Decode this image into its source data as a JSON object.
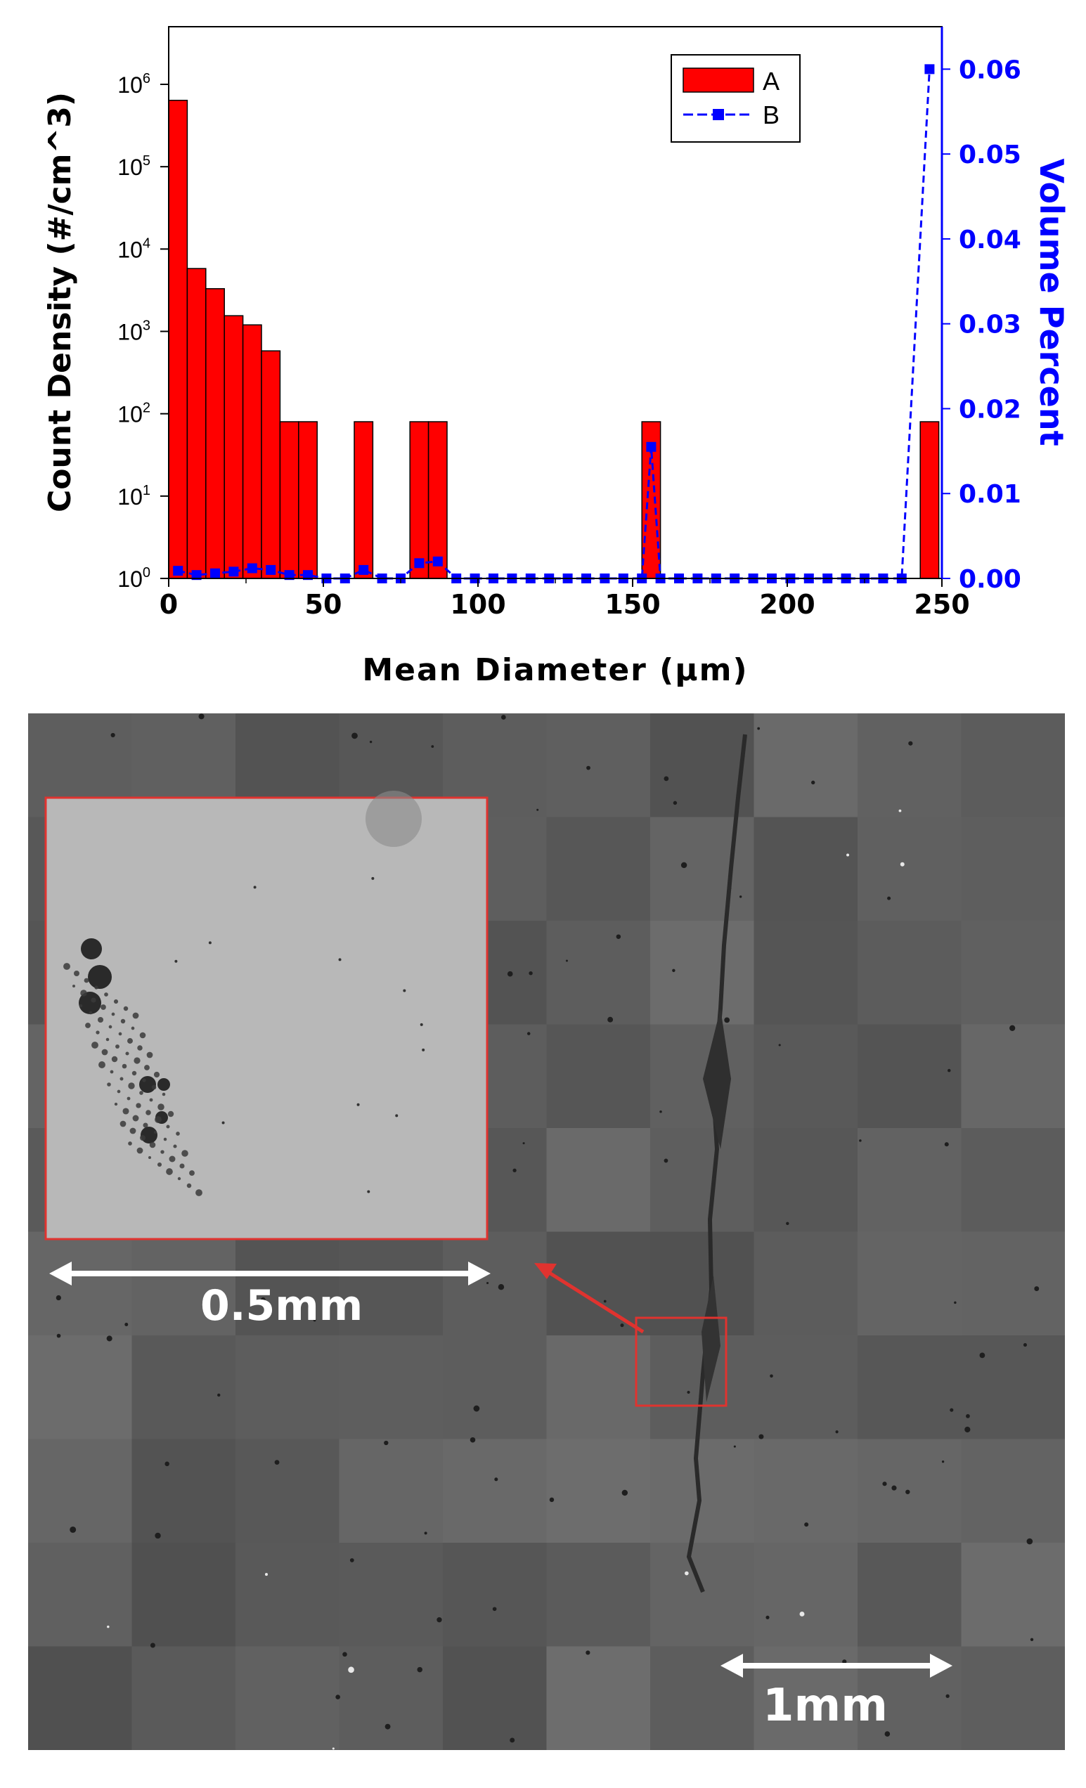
{
  "chart_data": {
    "type": "bar",
    "xlabel": "Mean Diameter (µm)",
    "ylabel": "Count Density (#/cm^3)",
    "y2label": "Volume Percent",
    "xlim": [
      0,
      250
    ],
    "ylim": [
      1,
      1000000
    ],
    "yscale": "log",
    "y2lim": [
      0,
      0.065
    ],
    "x_ticks": [
      0,
      50,
      100,
      150,
      200,
      250
    ],
    "y_ticks": [
      {
        "base": "10",
        "exp": "0",
        "value": 1
      },
      {
        "base": "10",
        "exp": "1",
        "value": 10
      },
      {
        "base": "10",
        "exp": "2",
        "value": 100
      },
      {
        "base": "10",
        "exp": "3",
        "value": 1000
      },
      {
        "base": "10",
        "exp": "4",
        "value": 10000
      },
      {
        "base": "10",
        "exp": "5",
        "value": 100000
      },
      {
        "base": "10",
        "exp": "6",
        "value": 1000000
      }
    ],
    "y2_ticks": [
      "0.00",
      "0.01",
      "0.02",
      "0.03",
      "0.04",
      "0.05",
      "0.06"
    ],
    "legend_position": "top-right",
    "grid": false,
    "colors": {
      "A": "#ff0000",
      "B": "#0000ff"
    },
    "series": [
      {
        "name": "A",
        "type": "bar",
        "axis": "left",
        "x": [
          3,
          9,
          15,
          21,
          27,
          33,
          39,
          45,
          63,
          81,
          87,
          156,
          246
        ],
        "values": [
          640000,
          5800,
          3300,
          1550,
          1200,
          580,
          80,
          80,
          80,
          80,
          80,
          80,
          80
        ]
      },
      {
        "name": "B",
        "type": "line",
        "axis": "right",
        "x": [
          3,
          9,
          15,
          21,
          27,
          33,
          39,
          45,
          51,
          57,
          63,
          69,
          75,
          81,
          87,
          93,
          99,
          105,
          111,
          117,
          123,
          129,
          135,
          141,
          147,
          153,
          156,
          159,
          165,
          171,
          177,
          183,
          189,
          195,
          201,
          207,
          213,
          219,
          225,
          231,
          237,
          246
        ],
        "values": [
          0.0009,
          0.0004,
          0.0006,
          0.0008,
          0.0012,
          0.001,
          0.0004,
          0.0004,
          0,
          0,
          0.001,
          0,
          0,
          0.0018,
          0.002,
          0,
          0,
          0,
          0,
          0,
          0,
          0,
          0,
          0,
          0,
          0,
          0.0155,
          0,
          0,
          0,
          0,
          0,
          0,
          0,
          0,
          0,
          0,
          0,
          0,
          0,
          0,
          0.06
        ]
      }
    ]
  },
  "micrograph": {
    "inset_scale_label": "0.5mm",
    "main_scale_label": "1mm",
    "colors": {
      "highlight": "#e0332f",
      "scale_bar": "#ffffff"
    }
  }
}
